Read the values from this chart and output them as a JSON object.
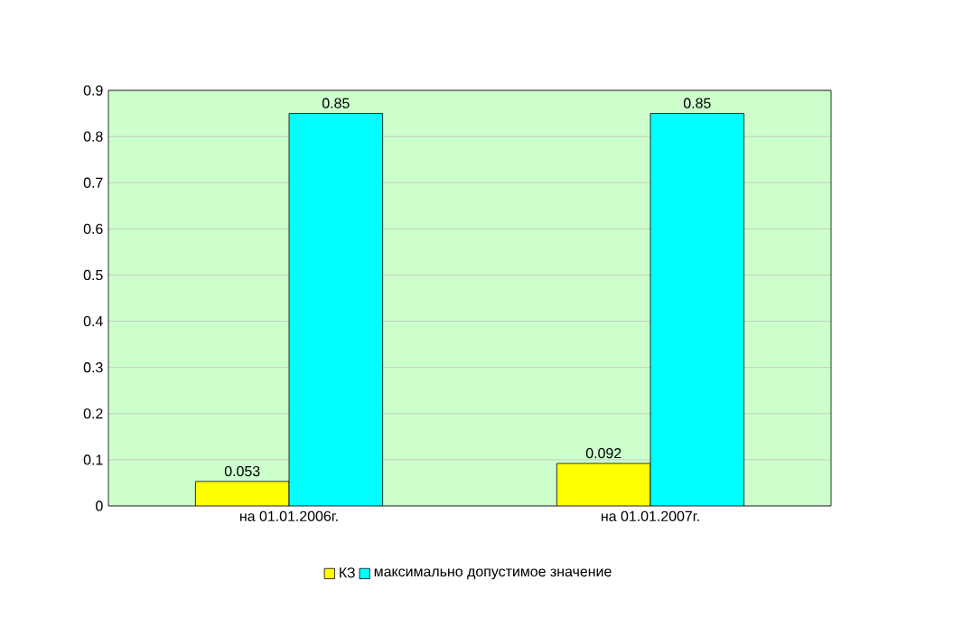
{
  "chart_data": {
    "type": "bar",
    "categories": [
      "на 01.01.2006г.",
      "на 01.01.2007г."
    ],
    "series": [
      {
        "name": "КЗ",
        "color": "#ffff00",
        "values": [
          0.053,
          0.092
        ]
      },
      {
        "name": "максимально допустимое значение",
        "color": "#00ffff",
        "values": [
          0.85,
          0.85
        ]
      }
    ],
    "ylim": [
      0,
      0.9
    ],
    "yticks": [
      0,
      0.1,
      0.2,
      0.3,
      0.4,
      0.5,
      0.6,
      0.7,
      0.8,
      0.9
    ],
    "grid": "y",
    "legend": "bottom",
    "data_labels": true
  }
}
